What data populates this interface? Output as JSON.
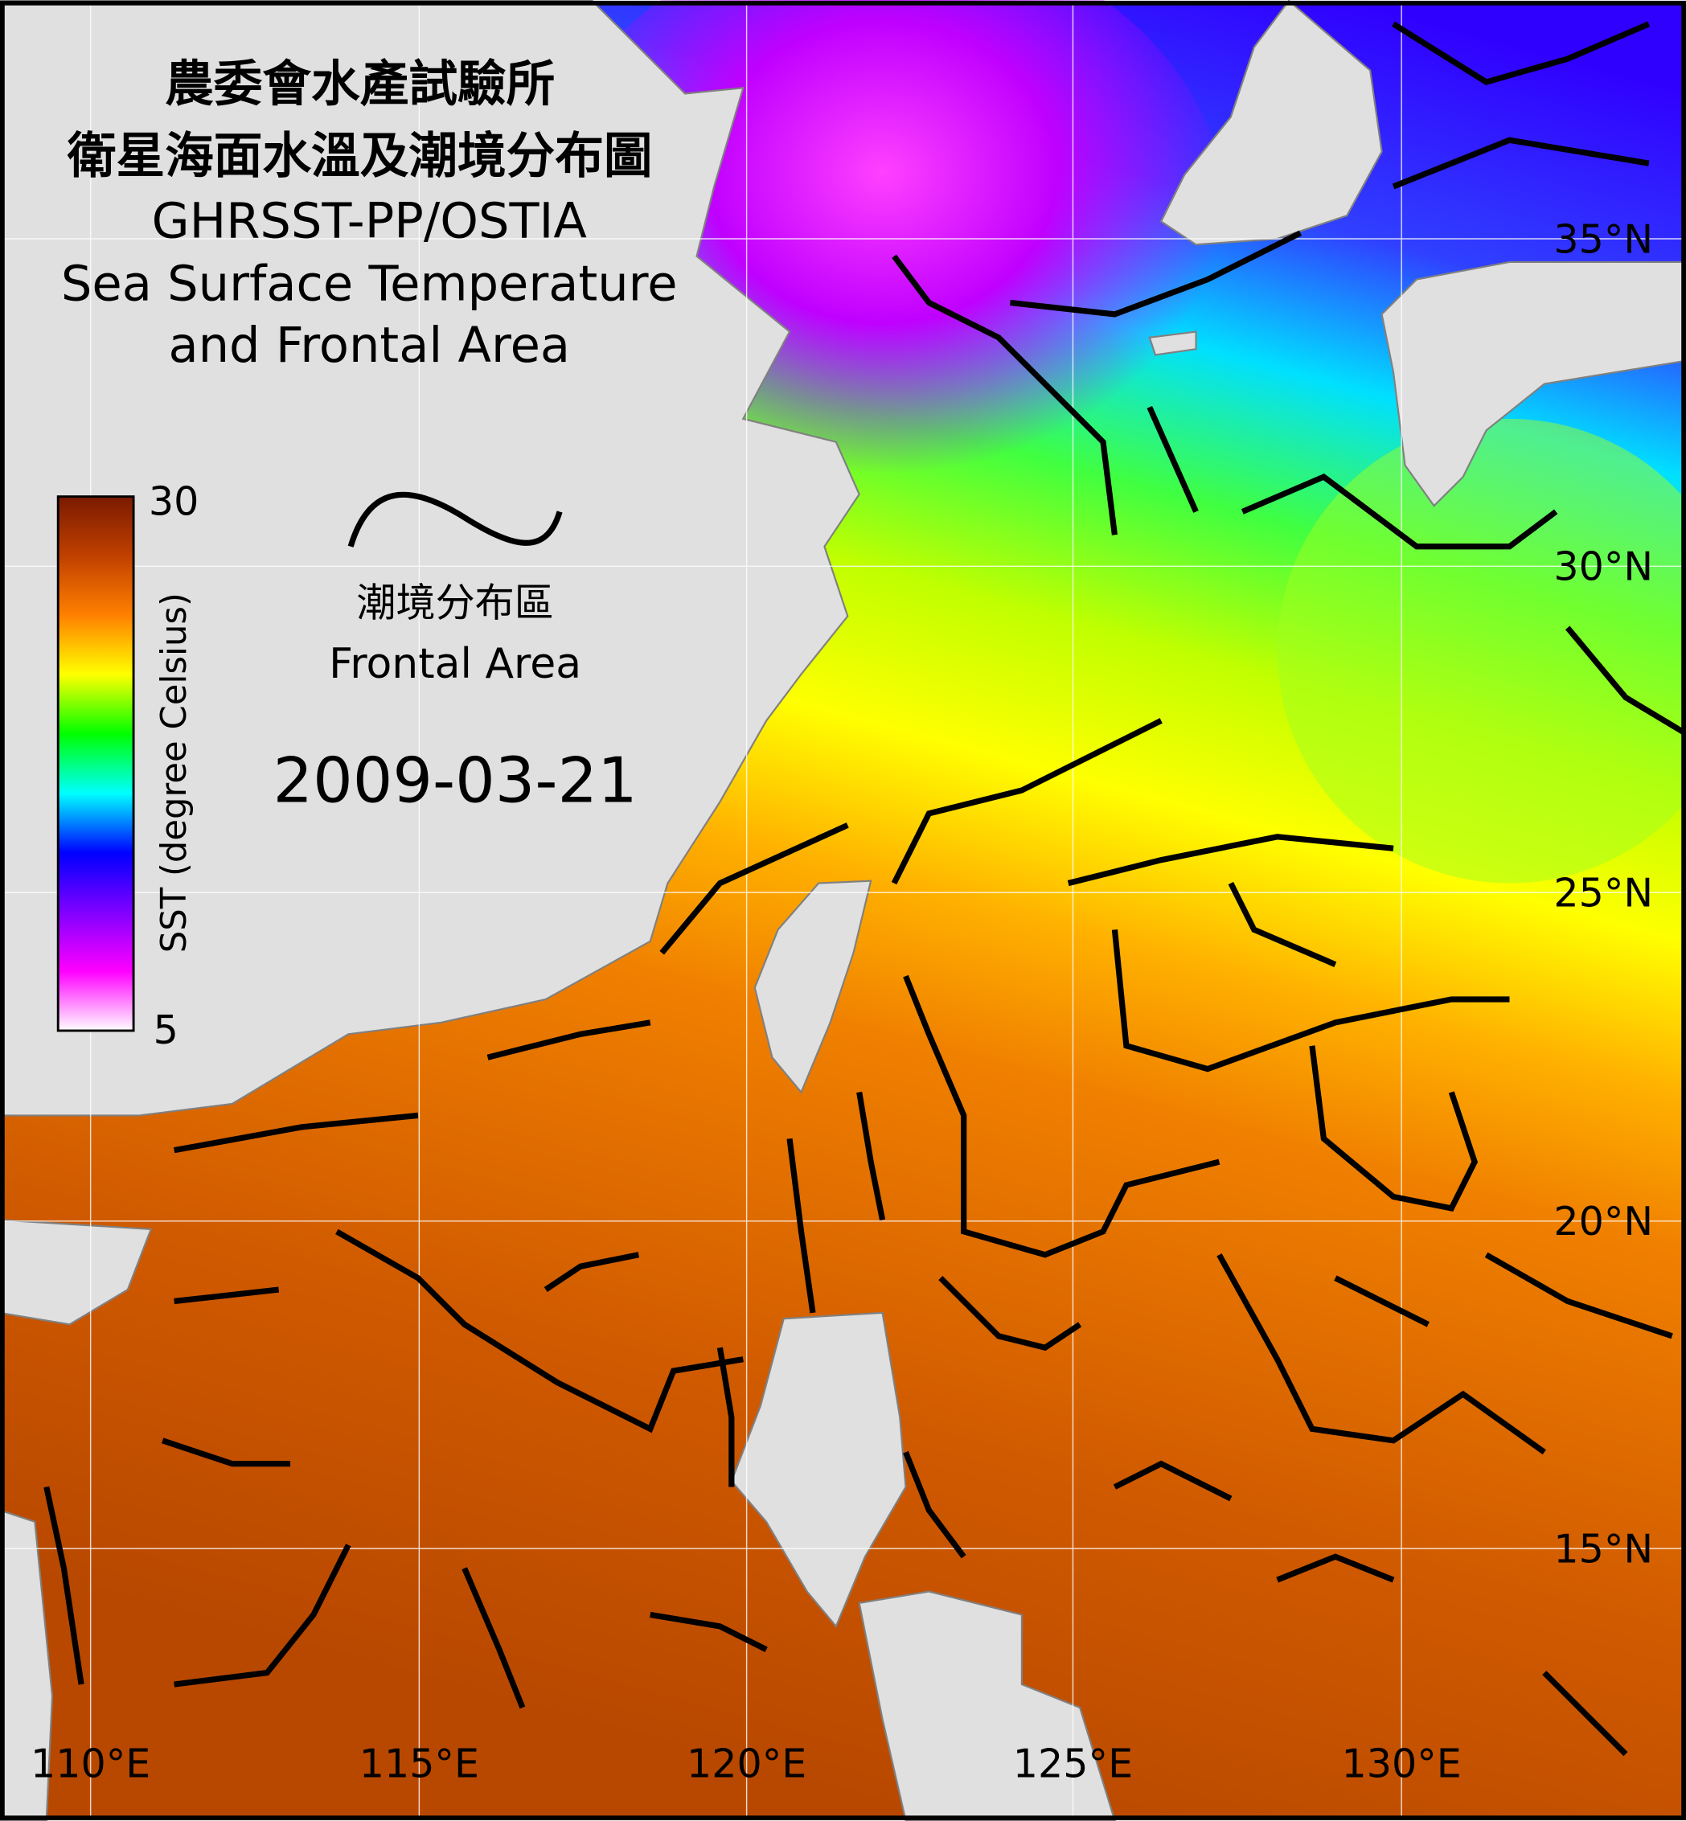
{
  "title": {
    "zh_org": "農委會水產試驗所",
    "zh_title": "衛星海面水溫及潮境分布圖",
    "dataset": "GHRSST-PP/OSTIA",
    "en_line1": "Sea Surface Temperature",
    "en_line2": "and Frontal Area"
  },
  "legend": {
    "front_zh": "潮境分布區",
    "front_en": "Frontal Area",
    "front_icon": "wavy-line-icon"
  },
  "date": "2009-03-21",
  "colorbar": {
    "label": "SST (degree Celsius)",
    "max_label": "30",
    "min_label": "5",
    "min": 5,
    "max": 30,
    "colors": [
      "#ffffff",
      "#ff00ff",
      "#8000ff",
      "#0000ff",
      "#00ffff",
      "#00ff00",
      "#ffff00",
      "#ff8000",
      "#c04000",
      "#7a1a00"
    ]
  },
  "axes": {
    "lat_labels": [
      "35°N",
      "30°N",
      "25°N",
      "20°N",
      "15°N"
    ],
    "lon_labels": [
      "110°E",
      "115°E",
      "120°E",
      "125°E",
      "130°E"
    ]
  },
  "colors": {
    "land": "#e0e0e0",
    "front": "#000000",
    "grid": "#ffffff"
  }
}
